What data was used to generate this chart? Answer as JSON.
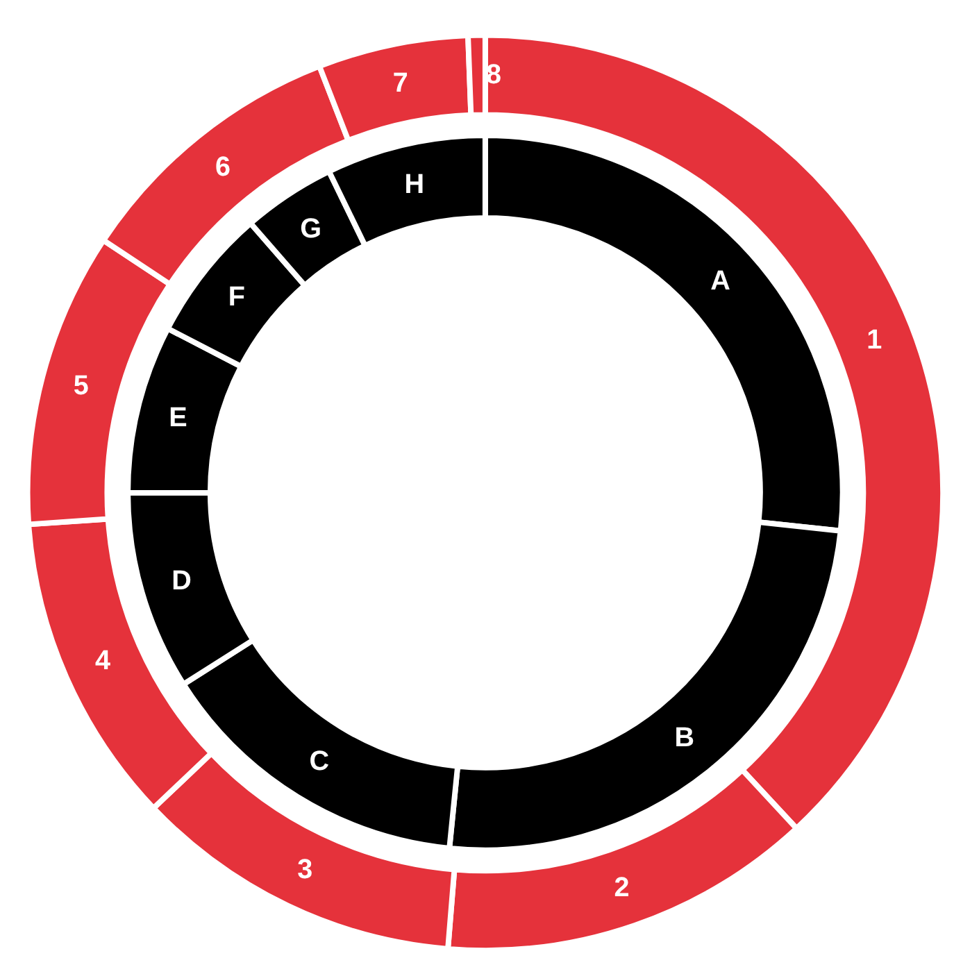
{
  "chart_data": [
    {
      "type": "donut",
      "categories": [
        "1",
        "2",
        "3",
        "4",
        "5",
        "6",
        "7",
        "8"
      ],
      "values": [
        38.1,
        13.2,
        11.6,
        11,
        10.4,
        9.8,
        5.3,
        0.6
      ],
      "colors": [
        "#e5323b",
        "#e5323b",
        "#e5323b",
        "#e5323b",
        "#e5323b",
        "#e5323b",
        "#e5323b",
        "#e5323b"
      ]
    },
    {
      "type": "donut",
      "categories": [
        "A",
        "B",
        "C",
        "D",
        "E",
        "F",
        "G",
        "H"
      ],
      "values": [
        26.7,
        24.9,
        14.4,
        9,
        7.6,
        6,
        4.2,
        7.2
      ],
      "colors": [
        "#000000",
        "#000000",
        "#000000",
        "#000000",
        "#000000",
        "#000000",
        "#000000",
        "#000000"
      ]
    }
  ]
}
